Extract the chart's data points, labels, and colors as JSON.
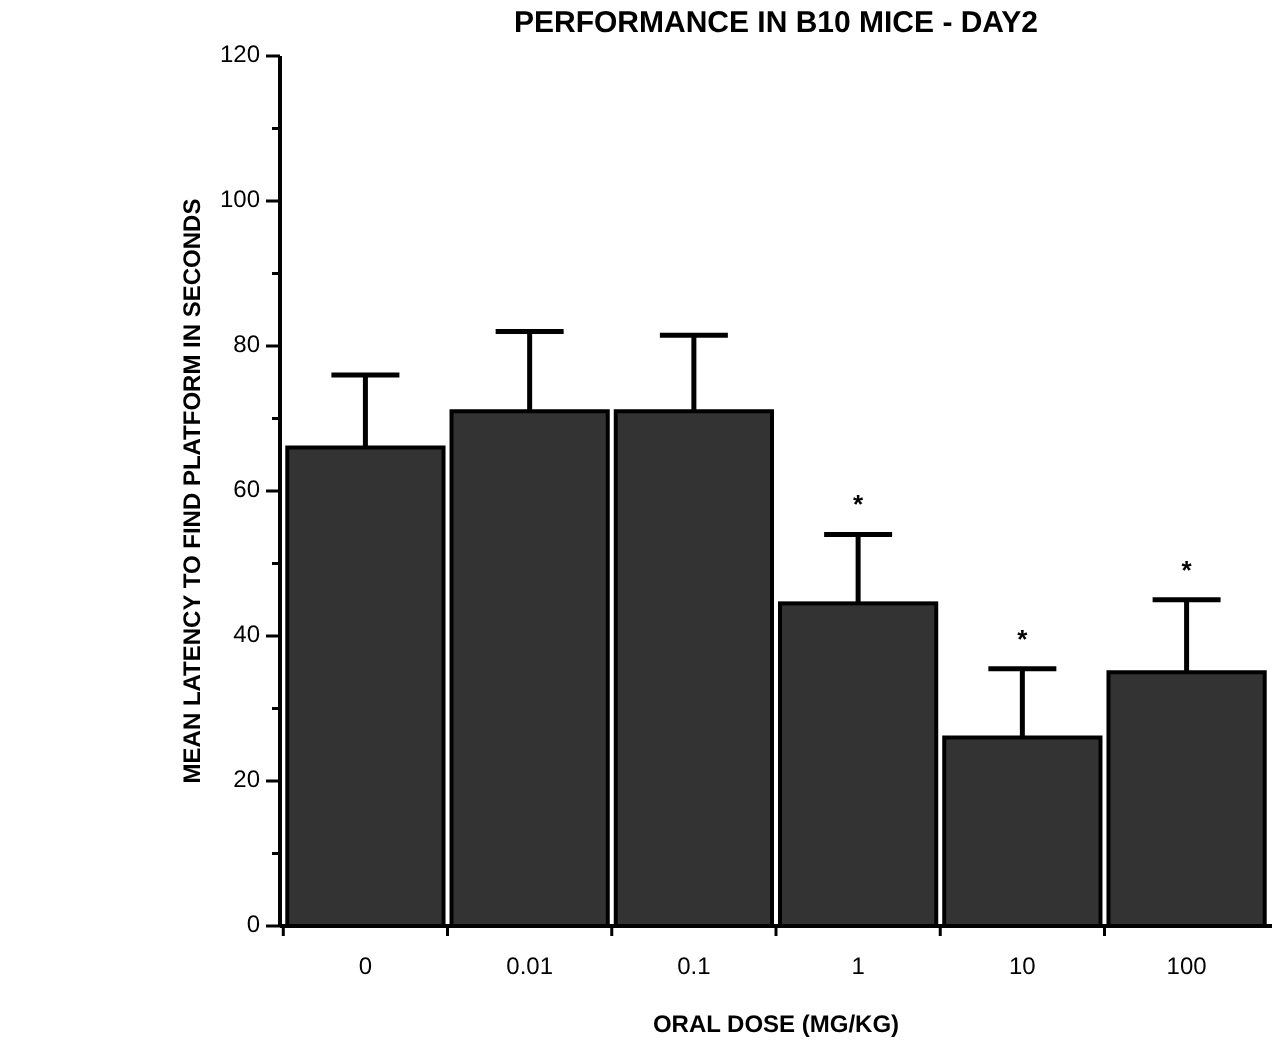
{
  "chart_data": {
    "type": "bar",
    "title": "PERFORMANCE IN B10 MICE - DAY2",
    "xlabel": "ORAL DOSE (MG/KG)",
    "ylabel": "MEAN LATENCY TO FIND PLATFORM IN SECONDS",
    "categories": [
      "0",
      "0.01",
      "0.1",
      "1",
      "10",
      "100"
    ],
    "values": [
      66,
      71,
      71,
      44.5,
      26,
      35
    ],
    "errors": [
      [
        66,
        76
      ],
      [
        71,
        82
      ],
      [
        71,
        81.5
      ],
      [
        44.5,
        54
      ],
      [
        26,
        35.5
      ],
      [
        35,
        45
      ]
    ],
    "color": "#333333",
    "ylim": [
      0,
      120
    ],
    "yticks": [
      0,
      {
        "value": 10,
        "label": null
      },
      20,
      {
        "value": 30,
        "label": null
      },
      40,
      {
        "value": 50,
        "label": null
      },
      60,
      {
        "value": 70,
        "label": null
      },
      80,
      {
        "value": 90,
        "label": null
      },
      100,
      {
        "value": 110,
        "label": null
      },
      120
    ],
    "annotations": [
      {
        "text": "*",
        "x": "1",
        "y": 54
      },
      {
        "text": "*",
        "x": "10",
        "y": 35.5
      },
      {
        "text": "*",
        "x": "100",
        "y": 45
      }
    ],
    "grid": false
  }
}
